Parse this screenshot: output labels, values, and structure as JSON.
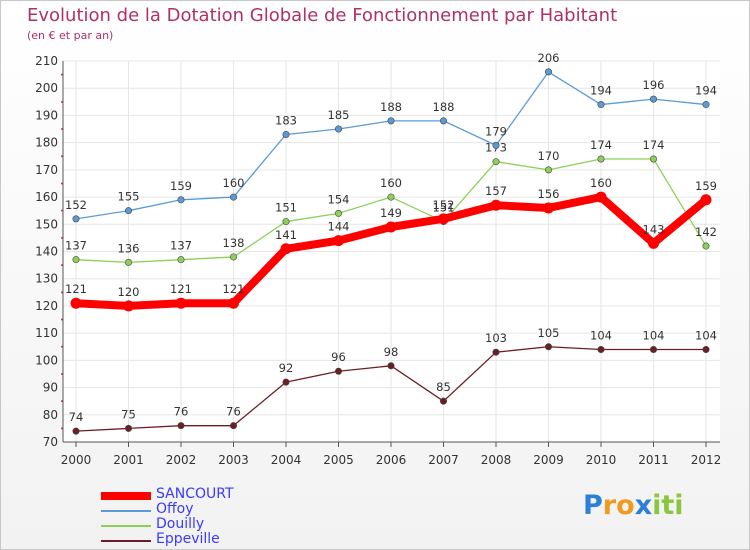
{
  "chart_data": {
    "type": "line",
    "title": "Evolution de la Dotation Globale de Fonctionnement par Habitant",
    "subtitle": "(en € et par an)",
    "x": [
      2000,
      2001,
      2002,
      2003,
      2004,
      2005,
      2006,
      2007,
      2008,
      2009,
      2010,
      2011,
      2012
    ],
    "ylim": [
      70,
      210
    ],
    "yticks": [
      70,
      80,
      90,
      100,
      110,
      120,
      130,
      140,
      150,
      160,
      170,
      180,
      190,
      200,
      210
    ],
    "grid": true,
    "legend_position": "bottom-left",
    "series": [
      {
        "name": "Eppeville",
        "color": "#6b1f24",
        "values": [
          74,
          75,
          76,
          76,
          92,
          96,
          98,
          85,
          103,
          105,
          104,
          104,
          104
        ]
      },
      {
        "name": "Douilly",
        "color": "#8cd05a",
        "values": [
          137,
          136,
          137,
          138,
          151,
          154,
          160,
          151,
          173,
          170,
          174,
          174,
          142
        ]
      },
      {
        "name": "Offoy",
        "color": "#5b9bd5",
        "values": [
          152,
          155,
          159,
          160,
          183,
          185,
          188,
          188,
          179,
          206,
          194,
          196,
          194
        ]
      },
      {
        "name": "SANCOURT",
        "color": "#ff0000",
        "values": [
          121,
          120,
          121,
          121,
          141,
          144,
          149,
          152,
          157,
          156,
          160,
          143,
          159
        ]
      }
    ]
  },
  "legend": {
    "items": [
      {
        "name": "SANCOURT",
        "color": "#ff0000"
      },
      {
        "name": "Offoy",
        "color": "#5b9bd5"
      },
      {
        "name": "Douilly",
        "color": "#8cd05a"
      },
      {
        "name": "Eppeville",
        "color": "#6b1f24"
      }
    ]
  },
  "brand": {
    "letters": [
      "P",
      "r",
      "o",
      "x",
      "i",
      "t",
      "i"
    ],
    "colors": [
      "#2b7fd8",
      "#f29a1e",
      "#f29a1e",
      "#2b7fd8",
      "#8cc63f",
      "#8cc63f",
      "#8cc63f"
    ]
  }
}
